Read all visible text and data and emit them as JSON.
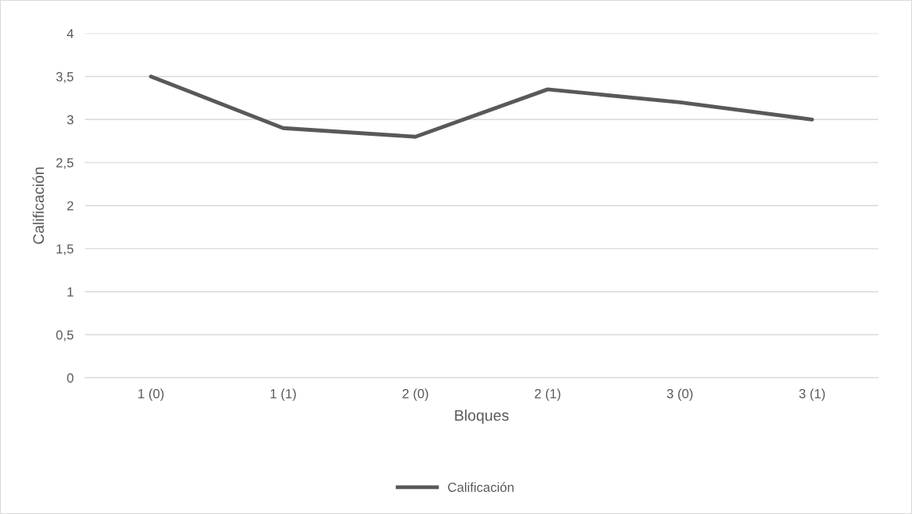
{
  "chart_data": {
    "type": "line",
    "xlabel": "Bloques",
    "ylabel": "Calificación",
    "categories": [
      "1 (0)",
      "1 (1)",
      "2 (0)",
      "2 (1)",
      "3 (0)",
      "3 (1)"
    ],
    "series": [
      {
        "name": "Calificación",
        "color": "#595959",
        "values": [
          3.5,
          2.9,
          2.8,
          3.35,
          3.2,
          3.0
        ]
      }
    ],
    "ylim": [
      0,
      4
    ],
    "yticks": [
      0,
      {
        "value": 0.5,
        "label": "0,5"
      },
      1,
      {
        "value": 1.5,
        "label": "1,5"
      },
      2,
      {
        "value": 2.5,
        "label": "2,5"
      },
      3,
      {
        "value": 3.5,
        "label": "3,5"
      },
      4
    ],
    "grid": "y",
    "legend": "bottom",
    "marker": "none",
    "line_style": "solid"
  }
}
